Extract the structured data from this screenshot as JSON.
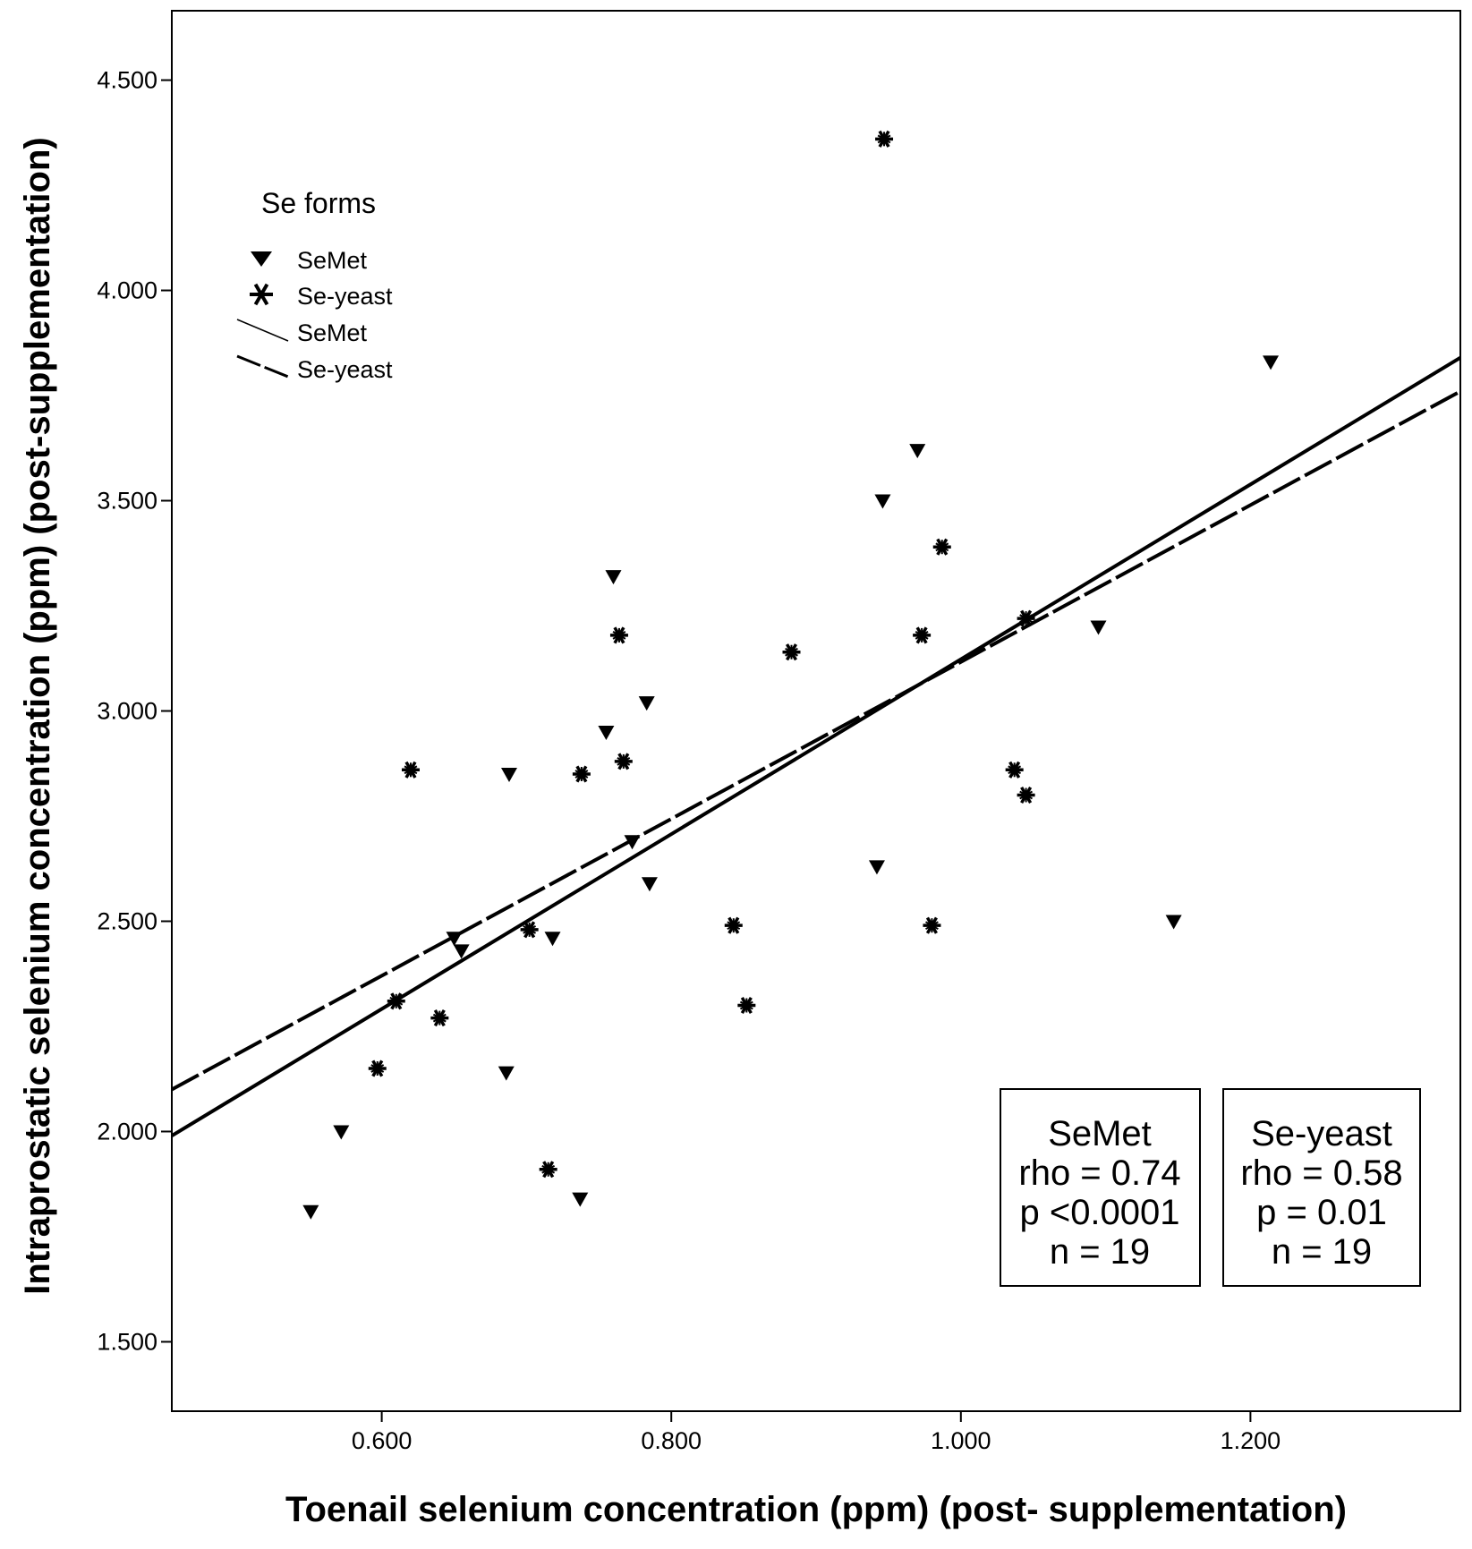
{
  "chart_data": {
    "type": "scatter",
    "xlabel": "Toenail selenium concentration (ppm) (post- supplementation)",
    "ylabel": "Intraprostatic selenium concentration (ppm) (post-supplementation)",
    "xlim": [
      0.455,
      1.345
    ],
    "ylim": [
      1.335,
      4.665
    ],
    "x_ticks": [
      0.6,
      0.8,
      1.0,
      1.2
    ],
    "x_tick_labels": [
      "0.600",
      "0.800",
      "1.000",
      "1.200"
    ],
    "y_ticks": [
      1.5,
      2.0,
      2.5,
      3.0,
      3.5,
      4.0,
      4.5
    ],
    "y_tick_labels": [
      "1.500",
      "2.000",
      "2.500",
      "3.000",
      "3.500",
      "4.000",
      "4.500"
    ],
    "legend": {
      "title": "Se forms",
      "entries": [
        {
          "label": "SeMet",
          "kind": "marker",
          "marker": "triangle-down-icon"
        },
        {
          "label": "Se-yeast",
          "kind": "marker",
          "marker": "asterisk-icon"
        },
        {
          "label": "SeMet",
          "kind": "line",
          "style": "solid"
        },
        {
          "label": "Se-yeast",
          "kind": "line",
          "style": "dashed"
        }
      ]
    },
    "series": [
      {
        "name": "SeMet",
        "marker": "triangle-down-icon",
        "points": [
          [
            0.551,
            1.81
          ],
          [
            0.572,
            2.0
          ],
          [
            0.65,
            2.46
          ],
          [
            0.655,
            2.43
          ],
          [
            0.686,
            2.14
          ],
          [
            0.688,
            2.85
          ],
          [
            0.718,
            2.46
          ],
          [
            0.737,
            1.84
          ],
          [
            0.755,
            2.95
          ],
          [
            0.76,
            3.32
          ],
          [
            0.773,
            2.69
          ],
          [
            0.783,
            3.02
          ],
          [
            0.785,
            2.59
          ],
          [
            0.942,
            2.63
          ],
          [
            0.946,
            3.5
          ],
          [
            0.97,
            3.62
          ],
          [
            1.095,
            3.2
          ],
          [
            1.147,
            2.5
          ],
          [
            1.214,
            3.83
          ]
        ],
        "fit": {
          "x": [
            0.455,
            1.345
          ],
          "y": [
            1.99,
            3.84
          ],
          "style": "solid"
        }
      },
      {
        "name": "Se-yeast",
        "marker": "asterisk-icon",
        "points": [
          [
            0.597,
            2.15
          ],
          [
            0.61,
            2.31
          ],
          [
            0.62,
            2.86
          ],
          [
            0.64,
            2.27
          ],
          [
            0.702,
            2.48
          ],
          [
            0.715,
            1.91
          ],
          [
            0.738,
            2.85
          ],
          [
            0.764,
            3.18
          ],
          [
            0.767,
            2.88
          ],
          [
            0.843,
            2.49
          ],
          [
            0.852,
            2.3
          ],
          [
            0.883,
            3.14
          ],
          [
            0.947,
            4.36
          ],
          [
            0.973,
            3.18
          ],
          [
            0.98,
            2.49
          ],
          [
            0.987,
            3.39
          ],
          [
            1.037,
            2.86
          ],
          [
            1.045,
            2.8
          ],
          [
            1.045,
            3.22
          ]
        ],
        "fit": {
          "x": [
            0.455,
            1.345
          ],
          "y": [
            2.1,
            3.76
          ],
          "style": "dashed"
        }
      }
    ],
    "annotations": [
      {
        "name": "SeMet",
        "lines": [
          "SeMet",
          "rho = 0.74",
          "p <0.0001",
          "n = 19"
        ]
      },
      {
        "name": "Se-yeast",
        "lines": [
          "Se-yeast",
          "rho = 0.58",
          "p = 0.01",
          "n = 19"
        ]
      }
    ]
  }
}
